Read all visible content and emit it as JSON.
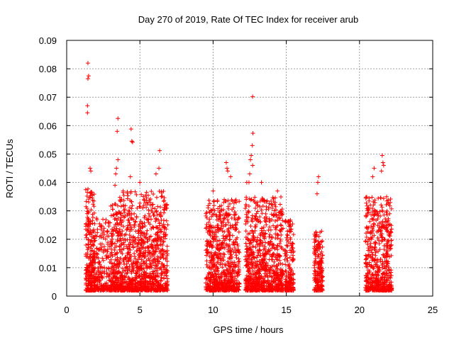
{
  "chart_data": {
    "type": "scatter",
    "title": "Day 270 of 2019, Rate Of TEC Index for receiver arub",
    "xlabel": "GPS time / hours",
    "ylabel": "ROTI / TECUs",
    "xlim": [
      0,
      25
    ],
    "ylim": [
      0,
      0.09
    ],
    "x_ticks": [
      "0",
      "5",
      "10",
      "15",
      "20",
      "25"
    ],
    "y_ticks": [
      "0",
      "0.01",
      "0.02",
      "0.03",
      "0.04",
      "0.05",
      "0.06",
      "0.07",
      "0.08",
      "0.09"
    ],
    "grid": true,
    "marker": "+",
    "color": "#ff0000",
    "clusters": [
      {
        "x_range": [
          1.3,
          1.9
        ],
        "count": 260,
        "y_max": 0.038
      },
      {
        "x_range": [
          1.9,
          3.0
        ],
        "count": 200,
        "y_max": 0.028
      },
      {
        "x_range": [
          3.0,
          3.8
        ],
        "count": 260,
        "y_max": 0.035
      },
      {
        "x_range": [
          3.8,
          6.9
        ],
        "count": 900,
        "y_max": 0.037
      },
      {
        "x_range": [
          9.5,
          11.8
        ],
        "count": 700,
        "y_max": 0.034
      },
      {
        "x_range": [
          12.2,
          14.8
        ],
        "count": 800,
        "y_max": 0.035
      },
      {
        "x_range": [
          14.9,
          15.5
        ],
        "count": 180,
        "y_max": 0.027
      },
      {
        "x_range": [
          16.9,
          17.5
        ],
        "count": 180,
        "y_max": 0.023
      },
      {
        "x_range": [
          20.4,
          22.2
        ],
        "count": 560,
        "y_max": 0.035
      }
    ],
    "points": [
      [
        1.45,
        0.082
      ],
      [
        1.5,
        0.0775
      ],
      [
        1.45,
        0.0765
      ],
      [
        1.42,
        0.067
      ],
      [
        1.42,
        0.0645
      ],
      [
        1.6,
        0.045
      ],
      [
        1.65,
        0.044
      ],
      [
        3.5,
        0.0625
      ],
      [
        3.45,
        0.058
      ],
      [
        3.5,
        0.048
      ],
      [
        3.4,
        0.045
      ],
      [
        3.35,
        0.043
      ],
      [
        3.3,
        0.039
      ],
      [
        4.4,
        0.0588
      ],
      [
        4.45,
        0.0545
      ],
      [
        4.5,
        0.0542
      ],
      [
        4.35,
        0.042
      ],
      [
        5.0,
        0.04
      ],
      [
        6.35,
        0.0512
      ],
      [
        6.3,
        0.045
      ],
      [
        6.1,
        0.043
      ],
      [
        10.9,
        0.047
      ],
      [
        10.95,
        0.045
      ],
      [
        11.0,
        0.044
      ],
      [
        11.2,
        0.042
      ],
      [
        10.0,
        0.037
      ],
      [
        12.7,
        0.0702
      ],
      [
        12.72,
        0.0573
      ],
      [
        12.68,
        0.053
      ],
      [
        12.6,
        0.0495
      ],
      [
        12.55,
        0.048
      ],
      [
        12.7,
        0.046
      ],
      [
        12.5,
        0.043
      ],
      [
        12.45,
        0.04
      ],
      [
        12.3,
        0.04
      ],
      [
        13.3,
        0.04
      ],
      [
        14.4,
        0.037
      ],
      [
        17.2,
        0.042
      ],
      [
        17.15,
        0.04
      ],
      [
        17.1,
        0.036
      ],
      [
        21.55,
        0.0495
      ],
      [
        21.6,
        0.047
      ],
      [
        21.65,
        0.046
      ],
      [
        21.0,
        0.045
      ],
      [
        20.9,
        0.042
      ],
      [
        21.5,
        0.044
      ]
    ]
  }
}
